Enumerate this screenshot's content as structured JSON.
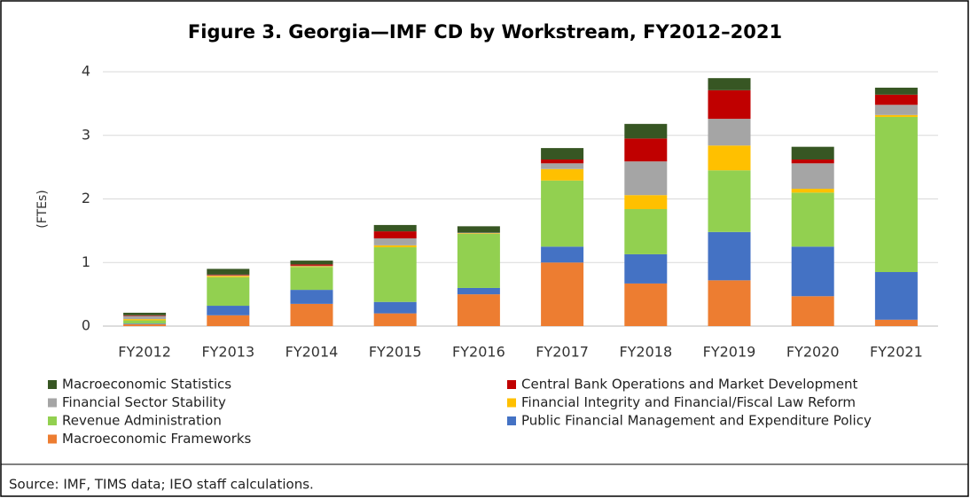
{
  "chart_data": {
    "type": "stacked_bar",
    "title": "Figure 3. Georgia—IMF CD by Workstream,  FY2012–2021",
    "y_label": "(FTEs)",
    "source": "Source: IMF, TIMS data;  IEO staff calculations.",
    "categories": [
      "FY2012",
      "FY2013",
      "FY2014",
      "FY2015",
      "FY2016",
      "FY2017",
      "FY2018",
      "FY2019",
      "FY2020",
      "FY2021"
    ],
    "series": [
      {
        "name": "Macroeconomic Frameworks",
        "color": "#ED7D31",
        "values": [
          0.03,
          0.17,
          0.35,
          0.2,
          0.5,
          1.0,
          0.67,
          0.72,
          0.47,
          0.1
        ]
      },
      {
        "name": "Public Financial Management and Expenditure Policy",
        "color": "#4472C4",
        "values": [
          0.01,
          0.15,
          0.22,
          0.18,
          0.1,
          0.25,
          0.46,
          0.76,
          0.78,
          0.75
        ]
      },
      {
        "name": "Revenue Administration",
        "color": "#92D050",
        "values": [
          0.05,
          0.45,
          0.36,
          0.86,
          0.85,
          1.04,
          0.71,
          0.97,
          0.85,
          2.44
        ]
      },
      {
        "name": "Financial Integrity and Financial/Fiscal Law Reform",
        "color": "#FFC000",
        "values": [
          0.02,
          0.02,
          0.01,
          0.03,
          0.01,
          0.18,
          0.22,
          0.39,
          0.06,
          0.03
        ]
      },
      {
        "name": "Financial Sector Stability",
        "color": "#A5A5A5",
        "values": [
          0.05,
          0.01,
          0.01,
          0.11,
          0.01,
          0.09,
          0.53,
          0.42,
          0.4,
          0.16
        ]
      },
      {
        "name": "Central Bank Operations and Market Development",
        "color": "#C00000",
        "values": [
          0.01,
          0.01,
          0.02,
          0.11,
          0,
          0.06,
          0.36,
          0.45,
          0.06,
          0.16
        ]
      },
      {
        "name": "Macroeconomic Statistics",
        "color": "#375623",
        "values": [
          0.04,
          0.09,
          0.06,
          0.1,
          0.1,
          0.18,
          0.23,
          0.19,
          0.2,
          0.11
        ]
      }
    ],
    "ylim": [
      0,
      4
    ],
    "yticks": [
      0,
      1,
      2,
      3,
      4
    ],
    "grid": true
  }
}
